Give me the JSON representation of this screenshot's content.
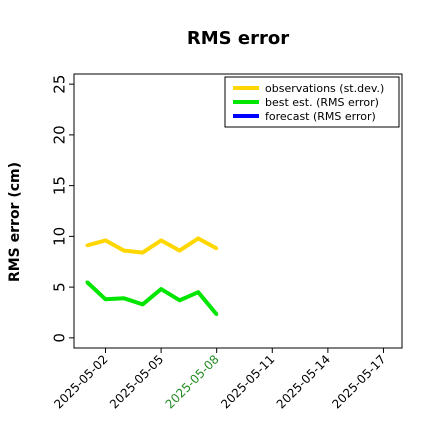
{
  "chart_data": {
    "type": "line",
    "title": "RMS error",
    "ylabel": "RMS error (cm)",
    "xlabel": "",
    "ylim": [
      -1,
      26
    ],
    "yticks": [
      0,
      5,
      10,
      15,
      20,
      25
    ],
    "x_ticks": [
      {
        "label": "2025-05-02",
        "day": 2,
        "color": "#000000"
      },
      {
        "label": "2025-05-05",
        "day": 5,
        "color": "#000000"
      },
      {
        "label": "2025-05-08",
        "day": 8,
        "color": "#228b22"
      },
      {
        "label": "2025-05-11",
        "day": 11,
        "color": "#000000"
      },
      {
        "label": "2025-05-14",
        "day": 14,
        "color": "#000000"
      },
      {
        "label": "2025-05-17",
        "day": 17,
        "color": "#000000"
      }
    ],
    "xlim_days": [
      0.3,
      18.0
    ],
    "legend_position": "upper right",
    "grid": false,
    "series": [
      {
        "name": "observations (st.dev.)",
        "color": "#ffd700",
        "x": [
          "2025-05-01",
          "2025-05-02",
          "2025-05-03",
          "2025-05-04",
          "2025-05-05",
          "2025-05-06",
          "2025-05-07",
          "2025-05-08"
        ],
        "values": [
          9.1,
          9.6,
          8.6,
          8.4,
          9.6,
          8.6,
          9.8,
          8.8
        ]
      },
      {
        "name": "best est. (RMS error)",
        "color": "#00e600",
        "x": [
          "2025-05-01",
          "2025-05-02",
          "2025-05-03",
          "2025-05-04",
          "2025-05-05",
          "2025-05-06",
          "2025-05-07",
          "2025-05-08"
        ],
        "values": [
          5.5,
          3.8,
          3.9,
          3.3,
          4.8,
          3.7,
          4.5,
          2.3
        ]
      },
      {
        "name": "forecast (RMS error)",
        "color": "#0000ff",
        "x": [],
        "values": []
      }
    ]
  }
}
